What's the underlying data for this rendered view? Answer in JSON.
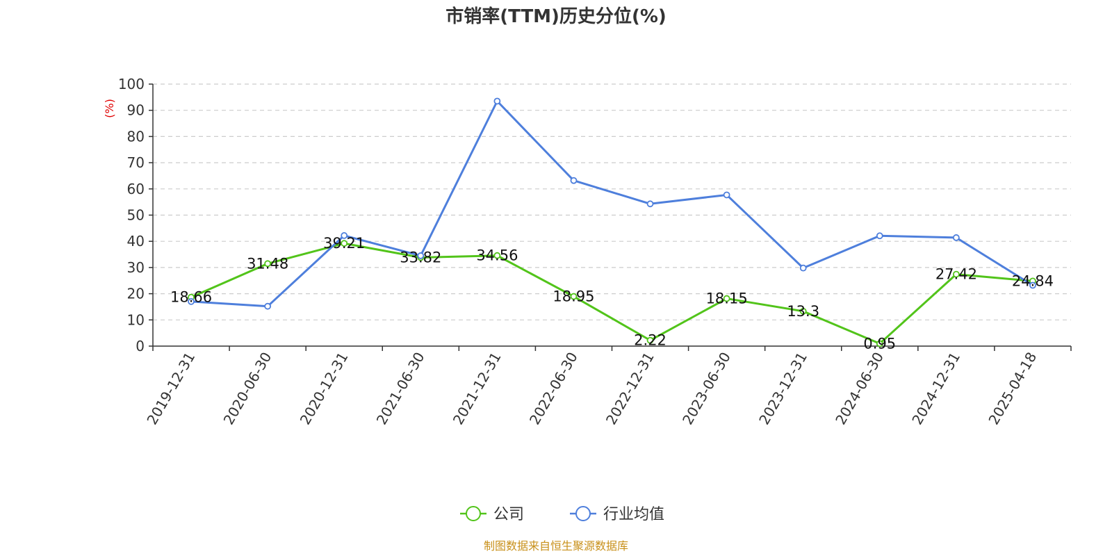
{
  "chart_data": {
    "type": "line",
    "title": "市销率(TTM)历史分位(%)",
    "ylabel": "(%)",
    "xlabel": "",
    "ylim": [
      0,
      100
    ],
    "yticks": [
      0,
      10,
      20,
      30,
      40,
      50,
      60,
      70,
      80,
      90,
      100
    ],
    "grid": true,
    "legend_position": "bottom",
    "categories": [
      "2019-12-31",
      "2020-06-30",
      "2020-12-31",
      "2021-06-30",
      "2021-12-31",
      "2022-06-30",
      "2022-12-31",
      "2023-06-30",
      "2023-12-31",
      "2024-06-30",
      "2024-12-31",
      "2025-04-18"
    ],
    "series": [
      {
        "name": "公司",
        "color": "#52c41a",
        "show_labels": true,
        "values": [
          18.66,
          31.48,
          39.21,
          33.82,
          34.56,
          18.95,
          2.22,
          18.15,
          13.3,
          0.95,
          27.42,
          24.84
        ]
      },
      {
        "name": "行业均值",
        "color": "#4e7fdc",
        "show_labels": false,
        "values": [
          17,
          15.2,
          42.2,
          34.5,
          93.5,
          63.2,
          54.3,
          57.7,
          29.8,
          42.1,
          41.4,
          23.2
        ]
      }
    ]
  },
  "colors": {
    "ylabel": "#e00000",
    "source": "#c8901a",
    "grid": "#cccccc",
    "axis": "#333333"
  },
  "footer": {
    "source": "制图数据来自恒生聚源数据库"
  }
}
